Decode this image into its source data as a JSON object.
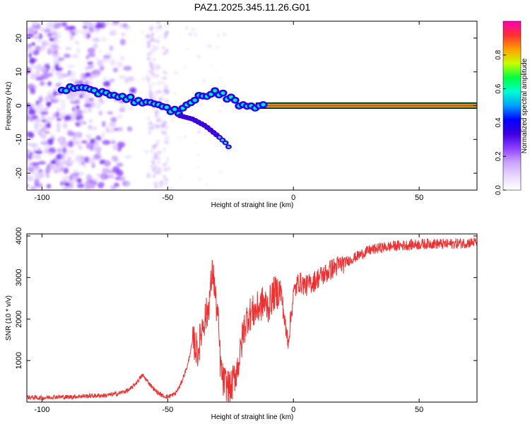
{
  "title": "PAZ1.2025.345.11.26.G01",
  "colors": {
    "snr_line": "#f03030",
    "track_core": "#ff3030",
    "spectrum_colormap": [
      "#ffffff",
      "#e8d8ff",
      "#c8a0ff",
      "#8c3cff",
      "#3c00e0",
      "#0000ff",
      "#00a0ff",
      "#00ffd0",
      "#00ff40",
      "#c8ff00",
      "#ffa000",
      "#ff3030",
      "#ff00b4"
    ]
  },
  "chart_data": [
    {
      "type": "heatmap",
      "title": "PAZ1.2025.345.11.26.G01",
      "xlabel": "Height of straight line (km)",
      "ylabel": "Frequency (Hz)",
      "xlim": [
        -106,
        73
      ],
      "ylim": [
        -25,
        25
      ],
      "xticks": [
        -100,
        -50,
        0,
        50
      ],
      "xtick_labels": [
        "-100",
        "-50",
        "0",
        "50"
      ],
      "yticks": [
        20,
        10,
        0,
        -10,
        -20
      ],
      "ytick_labels": [
        "20",
        "10",
        "0",
        "-10",
        "-20"
      ],
      "colorbar": {
        "label": "Normalized spectral amplitude",
        "range": [
          0,
          1
        ],
        "ticks": [
          0,
          0.2,
          0.4,
          0.6,
          0.8
        ],
        "tick_labels": [
          "0.0",
          "0.2",
          "0.4",
          "0.6",
          "0.8"
        ]
      },
      "main_track": {
        "x": [
          -90,
          -85,
          -80,
          -75,
          -70,
          -65,
          -60,
          -55,
          -50,
          -45,
          -40,
          -35,
          -30,
          -25,
          -20,
          -15,
          -10,
          -5,
          0,
          10,
          20,
          30,
          40,
          50,
          60,
          73
        ],
        "y": [
          5,
          5,
          4,
          4,
          3,
          2,
          1,
          0,
          -1,
          -2,
          2,
          3,
          4,
          2,
          0,
          0,
          0,
          1,
          0,
          0,
          0,
          0,
          0,
          0,
          0,
          0
        ]
      },
      "secondary_track": {
        "x": [
          -45,
          -40,
          -35,
          -30,
          -27,
          -25
        ],
        "y": [
          -3,
          -4,
          -6,
          -9,
          -11,
          -13
        ]
      }
    },
    {
      "type": "line",
      "xlabel": "Height of straight line (km)",
      "ylabel": "SNR (10 * v/v)",
      "xlim": [
        -106,
        73
      ],
      "ylim": [
        0,
        4050
      ],
      "xticks": [
        -100,
        -50,
        0,
        50
      ],
      "xtick_labels": [
        "-100",
        "-50",
        "0",
        "50"
      ],
      "yticks": [
        1000,
        2000,
        3000,
        4000
      ],
      "ytick_labels": [
        "1000",
        "2000",
        "3000",
        "4000"
      ],
      "series": [
        {
          "name": "SNR",
          "x": [
            -106,
            -100,
            -95,
            -90,
            -85,
            -80,
            -75,
            -70,
            -65,
            -62,
            -60,
            -58,
            -55,
            -52,
            -50,
            -47,
            -45,
            -42,
            -40,
            -38,
            -36,
            -34,
            -32,
            -31,
            -30,
            -29,
            -28,
            -26,
            -25,
            -24,
            -22,
            -21,
            -20,
            -18,
            -15,
            -12,
            -10,
            -8,
            -5,
            -3,
            -2,
            0,
            2,
            5,
            8,
            10,
            13,
            15,
            20,
            25,
            30,
            35,
            40,
            45,
            50,
            55,
            60,
            65,
            73
          ],
          "y": [
            120,
            100,
            130,
            120,
            140,
            150,
            160,
            200,
            300,
            500,
            650,
            500,
            280,
            150,
            130,
            200,
            400,
            900,
            1500,
            1200,
            1900,
            2200,
            3200,
            2500,
            2000,
            900,
            500,
            400,
            300,
            500,
            900,
            1200,
            1700,
            2100,
            2200,
            2400,
            2300,
            2600,
            2700,
            1700,
            1500,
            2600,
            2900,
            2800,
            2900,
            3000,
            3100,
            3200,
            3350,
            3500,
            3650,
            3720,
            3760,
            3780,
            3800,
            3820,
            3800,
            3820,
            3850
          ]
        }
      ]
    }
  ]
}
